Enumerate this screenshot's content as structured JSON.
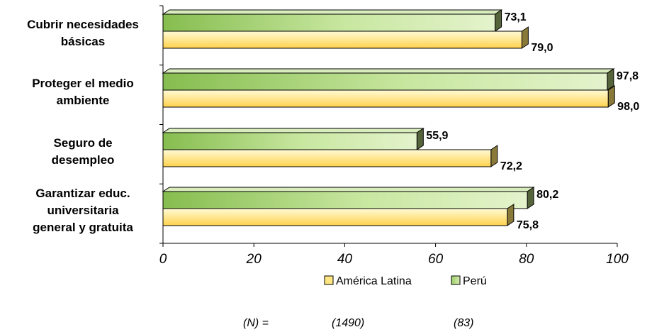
{
  "chart_data": {
    "type": "bar",
    "orientation": "horizontal",
    "categories": [
      [
        "Cubrir necesidades",
        "básicas"
      ],
      [
        "Proteger el medio",
        "ambiente"
      ],
      [
        "Seguro de",
        "desempleo"
      ],
      [
        "Garantizar educ.",
        "universitaria",
        "general y gratuita"
      ]
    ],
    "series": [
      {
        "name": "Perú",
        "values": [
          73.1,
          97.8,
          55.9,
          80.2
        ],
        "value_labels": [
          "73,1",
          "97,8",
          "55,9",
          "80,2"
        ],
        "color": "#b5dc82"
      },
      {
        "name": "América Latina",
        "values": [
          79.0,
          98.0,
          72.2,
          75.8
        ],
        "value_labels": [
          "79,0",
          "98,0",
          "72,2",
          "75,8"
        ],
        "color": "#ffe680"
      }
    ],
    "xlim": [
      0,
      100
    ],
    "xticks": [
      "0",
      "20",
      "40",
      "60",
      "80",
      "100"
    ],
    "grid": false,
    "legend": {
      "position": "bottom",
      "items": [
        {
          "label": "América Latina",
          "color": "#ffe680"
        },
        {
          "label": "Perú",
          "color": "#b5dc82"
        }
      ]
    }
  },
  "footer": {
    "n_label": "(N) =",
    "n_values": [
      "(1490)",
      "(83)"
    ]
  }
}
